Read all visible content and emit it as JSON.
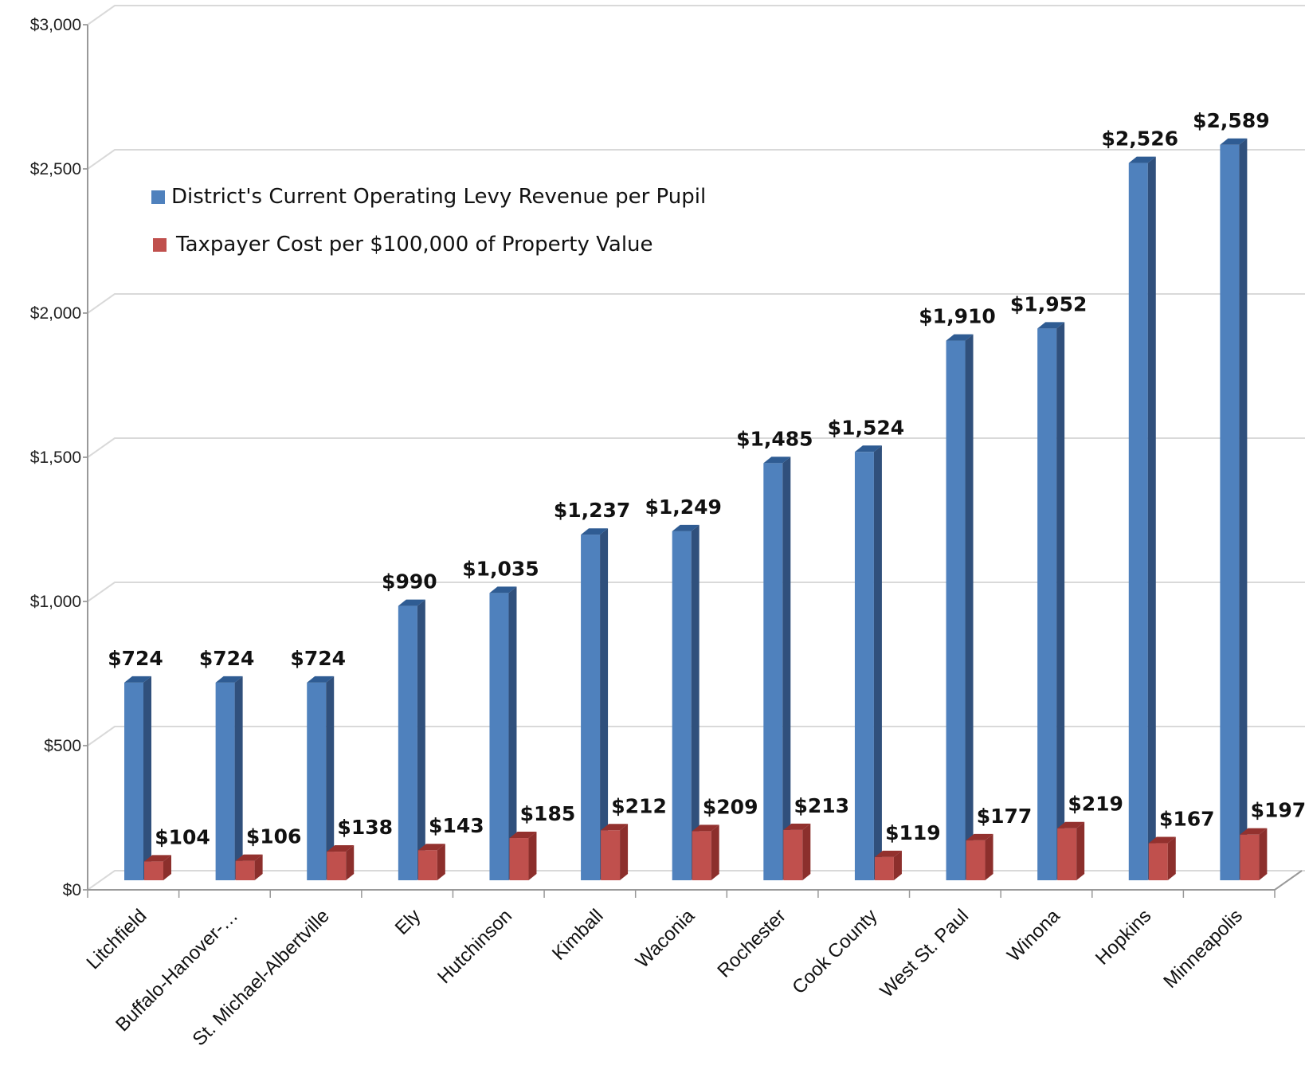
{
  "chart_data": {
    "type": "bar",
    "categories": [
      "Litchfield",
      "Buffalo-Hanover-…",
      "St. Michael-Albertville",
      "Ely",
      "Hutchinson",
      "Kimball",
      "Waconia",
      "Rochester",
      "Cook County",
      "West St. Paul",
      "Winona",
      "Hopkins",
      "Minneapolis"
    ],
    "series": [
      {
        "name": "District's Current Operating Levy Revenue per Pupil",
        "color": "#4F81BD",
        "values": [
          724,
          724,
          724,
          990,
          1035,
          1237,
          1249,
          1485,
          1524,
          1910,
          1952,
          2526,
          2589
        ],
        "labels": [
          "$724",
          "$724",
          "$724",
          "$990",
          "$1,035",
          "$1,237",
          "$1,249",
          "$1,485",
          "$1,524",
          "$1,910",
          "$1,952",
          "$2,526",
          "$2,589"
        ]
      },
      {
        "name": "Taxpayer Cost per $100,000 of Property Value",
        "color": "#C0504D",
        "values": [
          104,
          106,
          138,
          143,
          185,
          212,
          209,
          213,
          119,
          177,
          219,
          167,
          197
        ],
        "labels": [
          "$104",
          "$106",
          "$138",
          "$143",
          "$185",
          "$212",
          "$209",
          "$213",
          "$119",
          "$177",
          "$219",
          "$167",
          "$197"
        ]
      }
    ],
    "ylim": [
      0,
      3000
    ],
    "yticks": [
      0,
      500,
      1000,
      1500,
      2000,
      2500,
      3000
    ],
    "ytick_labels": [
      "$0",
      "$500",
      "$1,000",
      "$1,500",
      "$2,000",
      "$2,500",
      "$3,000"
    ],
    "grid": true,
    "legend_position": "top-left",
    "style": "3d-column"
  }
}
